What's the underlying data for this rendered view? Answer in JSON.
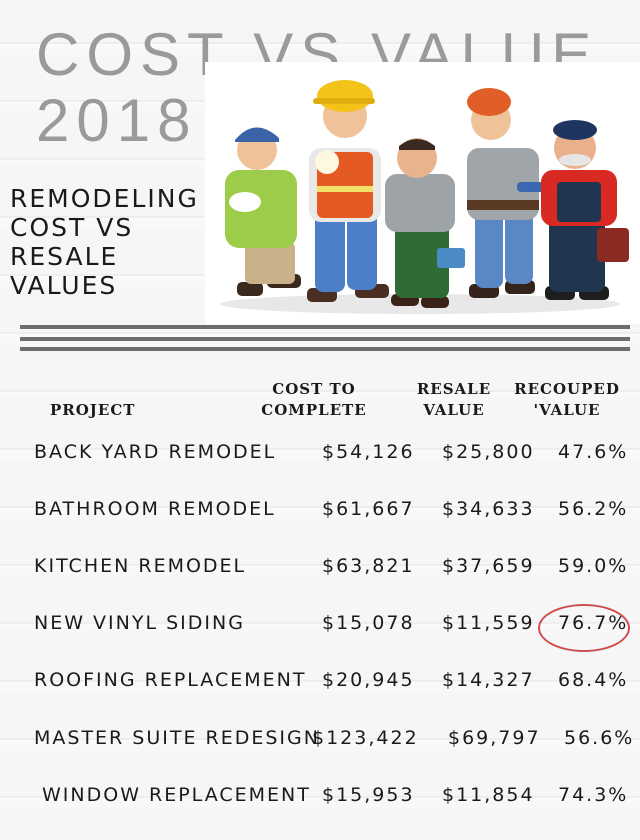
{
  "title": {
    "line1": "COST VS VALUE",
    "line2": "2018"
  },
  "subtitle": {
    "lines": [
      "REMODELING",
      "COST VS",
      "RESALE",
      "VALUES"
    ]
  },
  "table": {
    "headers": {
      "project": "PROJECT",
      "cost": [
        "COST TO",
        "COMPLETE"
      ],
      "resale": [
        "RESALE",
        "VALUE"
      ],
      "recouped": [
        "RECOUPED",
        "'VALUE"
      ]
    },
    "rows": [
      {
        "project": "BACK YARD REMODEL",
        "cost": "$54,126",
        "resale": "$25,800",
        "recouped": "47.6%"
      },
      {
        "project": "BATHROOM REMODEL",
        "cost": "$61,667",
        "resale": "$34,633",
        "recouped": "56.2%"
      },
      {
        "project": "KITCHEN REMODEL",
        "cost": "$63,821",
        "resale": "$37,659",
        "recouped": "59.0%"
      },
      {
        "project": "NEW VINYL SIDING",
        "cost": "$15,078",
        "resale": "$11,559",
        "recouped": "76.7%",
        "highlighted": true
      },
      {
        "project": "ROOFING REPLACEMENT",
        "cost": "$20,945",
        "resale": "$14,327",
        "recouped": "68.4%"
      },
      {
        "project": "MASTER SUITE REDESIGN",
        "cost": "$123,422",
        "resale": "$69,797",
        "recouped": "56.6%"
      },
      {
        "project": "WINDOW REPLACEMENT",
        "cost": "$15,953",
        "resale": "$11,854",
        "recouped": "74.3%"
      }
    ]
  },
  "colors": {
    "title": "#9a9a9a",
    "highlight_circle": "#cf4f4f",
    "rule": "#6d6d6d"
  }
}
